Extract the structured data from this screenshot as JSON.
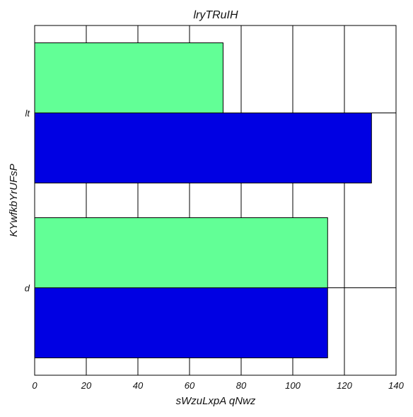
{
  "chart_data": {
    "type": "bar",
    "orientation": "horizontal",
    "title": "lryTRuIH",
    "xlabel": "sWzuLxpA qNwz",
    "ylabel": "KYwfkbYrUFsP",
    "categories": [
      "d",
      "lt"
    ],
    "series": [
      {
        "color": "#0000e3",
        "values": [
          113.5,
          130.5
        ]
      },
      {
        "color": "#62ff96",
        "values": [
          113.5,
          73
        ]
      }
    ],
    "xlim": [
      0,
      140
    ],
    "x_ticks": [
      0,
      20,
      40,
      60,
      80,
      100,
      120,
      140
    ],
    "grid": true
  }
}
